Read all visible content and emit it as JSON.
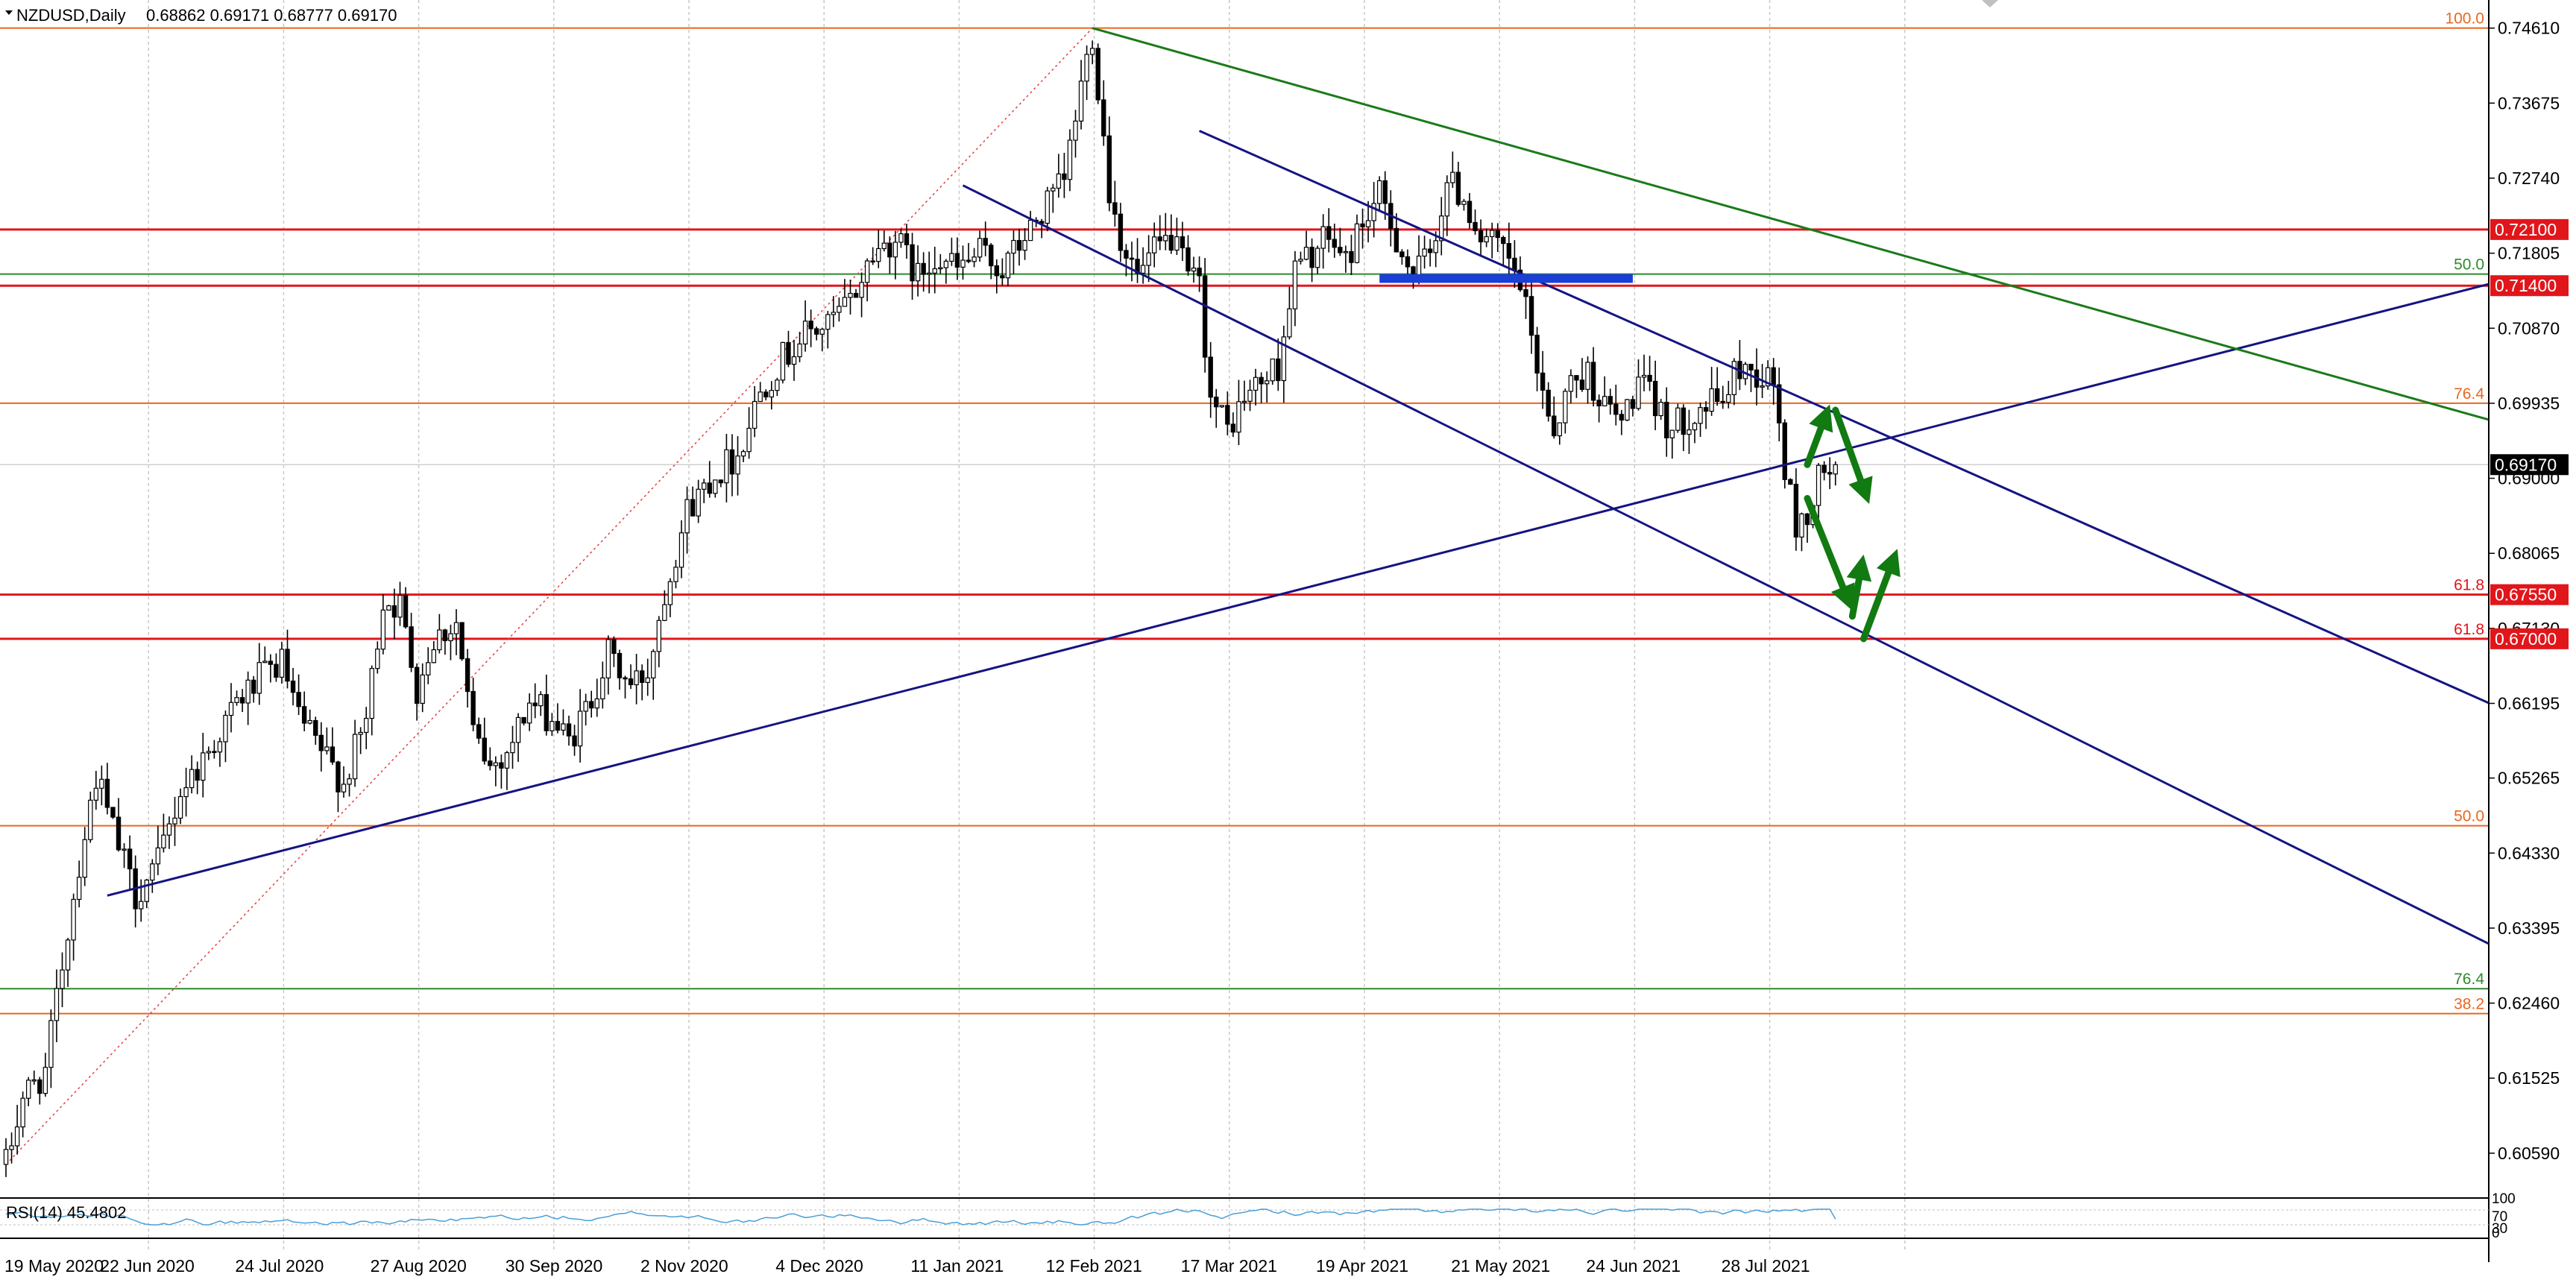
{
  "header": {
    "symbol_timeframe": "NZDUSD,Daily",
    "ohlc": "0.68862 0.69171 0.68777 0.69170"
  },
  "colors": {
    "background": "#ffffff",
    "grid": "#c8c8c8",
    "fib_orange": "#e8671f",
    "fib_green": "#2e8b2e",
    "level_red": "#e0161b",
    "trend_navy": "#141482",
    "trend_green": "#1b7a1b",
    "zone_blue": "#1a3fd6",
    "arrow_green": "#117a11",
    "candle": "#000000",
    "rsi_line": "#4a9fd8",
    "current_price_bg": "#000000"
  },
  "chart_data": [
    {
      "type": "candlestick",
      "title": "NZDUSD,Daily",
      "current_price": 0.6917,
      "ylim": [
        0.6005,
        0.7496
      ],
      "y_ticks": [
        0.7461,
        0.73675,
        0.7274,
        0.71805,
        0.7087,
        0.69935,
        0.69,
        0.68065,
        0.6713,
        0.66195,
        0.65265,
        0.6433,
        0.63395,
        0.6246,
        0.61525,
        0.6059
      ],
      "y_tick_labels": [
        "0.74610",
        "0.73675",
        "0.72740",
        "0.71805",
        "0.70870",
        "0.69935",
        "0.69000",
        "0.68065",
        "0.67130",
        "0.66195",
        "0.65265",
        "0.64330",
        "0.63395",
        "0.62460",
        "0.61525",
        "0.60590"
      ],
      "x_labels": [
        "19 May 2020",
        "22 Jun 2020",
        "24 Jul 2020",
        "27 Aug 2020",
        "30 Sep 2020",
        "2 Nov 2020",
        "4 Dec 2020",
        "11 Jan 2021",
        "12 Feb 2021",
        "17 Mar 2021",
        "19 Apr 2021",
        "21 May 2021",
        "24 Jun 2021",
        "28 Jul 2021"
      ],
      "x_label_bars": [
        0,
        24,
        48,
        72,
        96,
        120,
        144,
        168,
        192,
        216,
        240,
        264,
        288,
        312
      ],
      "bar_count": 326,
      "anchors": [
        [
          0,
          0.6045
        ],
        [
          3,
          0.613
        ],
        [
          7,
          0.616
        ],
        [
          10,
          0.6295
        ],
        [
          13,
          0.642
        ],
        [
          16,
          0.653
        ],
        [
          20,
          0.644
        ],
        [
          23,
          0.638
        ],
        [
          27,
          0.642
        ],
        [
          31,
          0.651
        ],
        [
          36,
          0.656
        ],
        [
          41,
          0.662
        ],
        [
          45,
          0.665
        ],
        [
          49,
          0.667
        ],
        [
          52,
          0.66
        ],
        [
          56,
          0.656
        ],
        [
          60,
          0.652
        ],
        [
          64,
          0.66
        ],
        [
          67,
          0.675
        ],
        [
          70,
          0.674
        ],
        [
          73,
          0.664
        ],
        [
          76,
          0.67
        ],
        [
          80,
          0.672
        ],
        [
          83,
          0.658
        ],
        [
          86,
          0.654
        ],
        [
          89,
          0.656
        ],
        [
          93,
          0.662
        ],
        [
          97,
          0.66
        ],
        [
          100,
          0.657
        ],
        [
          103,
          0.661
        ],
        [
          107,
          0.668
        ],
        [
          111,
          0.664
        ],
        [
          114,
          0.666
        ],
        [
          117,
          0.676
        ],
        [
          121,
          0.686
        ],
        [
          125,
          0.69
        ],
        [
          130,
          0.693
        ],
        [
          134,
          0.701
        ],
        [
          138,
          0.705
        ],
        [
          142,
          0.708
        ],
        [
          146,
          0.709
        ],
        [
          150,
          0.712
        ],
        [
          154,
          0.718
        ],
        [
          158,
          0.72
        ],
        [
          162,
          0.715
        ],
        [
          165,
          0.718
        ],
        [
          169,
          0.716
        ],
        [
          173,
          0.718
        ],
        [
          177,
          0.716
        ],
        [
          181,
          0.72
        ],
        [
          185,
          0.724
        ],
        [
          188,
          0.727
        ],
        [
          191,
          0.739
        ],
        [
          193,
          0.7455
        ],
        [
          196,
          0.726
        ],
        [
          198,
          0.72
        ],
        [
          201,
          0.715
        ],
        [
          204,
          0.718
        ],
        [
          207,
          0.72
        ],
        [
          210,
          0.715
        ],
        [
          212,
          0.714
        ],
        [
          214,
          0.7
        ],
        [
          217,
          0.696
        ],
        [
          220,
          0.7
        ],
        [
          223,
          0.702
        ],
        [
          226,
          0.704
        ],
        [
          229,
          0.716
        ],
        [
          232,
          0.718
        ],
        [
          235,
          0.72
        ],
        [
          238,
          0.717
        ],
        [
          241,
          0.722
        ],
        [
          244,
          0.725
        ],
        [
          247,
          0.72
        ],
        [
          250,
          0.715
        ],
        [
          253,
          0.718
        ],
        [
          256,
          0.727
        ],
        [
          259,
          0.725
        ],
        [
          262,
          0.72
        ],
        [
          266,
          0.718
        ],
        [
          269,
          0.714
        ],
        [
          272,
          0.704
        ],
        [
          275,
          0.696
        ],
        [
          278,
          0.702
        ],
        [
          281,
          0.703
        ],
        [
          284,
          0.699
        ],
        [
          287,
          0.697
        ],
        [
          290,
          0.702
        ],
        [
          293,
          0.699
        ],
        [
          296,
          0.696
        ],
        [
          299,
          0.698
        ],
        [
          302,
          0.699
        ],
        [
          305,
          0.7
        ],
        [
          308,
          0.704
        ],
        [
          311,
          0.703
        ],
        [
          314,
          0.702
        ],
        [
          316,
          0.691
        ],
        [
          318,
          0.684
        ],
        [
          320,
          0.685
        ],
        [
          322,
          0.69
        ],
        [
          325,
          0.6917
        ]
      ],
      "horizontal_levels": [
        {
          "price": 0.7461,
          "color": "fib_orange",
          "label": "100.0"
        },
        {
          "price": 0.721,
          "color": "level_red",
          "tag": "0.72100"
        },
        {
          "price": 0.71545,
          "color": "fib_green",
          "label": "50.0"
        },
        {
          "price": 0.714,
          "color": "level_red",
          "tag": "0.71400"
        },
        {
          "price": 0.69935,
          "color": "fib_orange",
          "label": "76.4"
        },
        {
          "price": 0.6755,
          "color": "level_red",
          "tag": "0.67550",
          "label": "61.8"
        },
        {
          "price": 0.67,
          "color": "level_red",
          "tag": "0.67000",
          "label": "61.8"
        },
        {
          "price": 0.6467,
          "color": "fib_orange",
          "label": "50.0"
        },
        {
          "price": 0.6264,
          "color": "fib_green",
          "label": "76.4"
        },
        {
          "price": 0.6233,
          "color": "fib_orange",
          "label": "38.2"
        }
      ],
      "trend_lines": [
        {
          "color": "trend_navy",
          "from": [
            18,
            0.638
          ],
          "to": [
            "right",
            0.7142
          ]
        },
        {
          "color": "trend_navy",
          "from": [
            212,
            0.7333
          ],
          "to": [
            "right",
            0.662
          ]
        },
        {
          "color": "trend_navy",
          "from": [
            170,
            0.7265
          ],
          "to": [
            "right",
            0.632
          ]
        },
        {
          "color": "trend_green",
          "from": [
            193,
            0.7461
          ],
          "to": [
            "right",
            0.6973
          ]
        }
      ],
      "fib_dotted_line": {
        "from": [
          0,
          0.6045
        ],
        "to": [
          193,
          0.7461
        ]
      },
      "zone": {
        "from_bar": 244,
        "to_bar": 289,
        "price_top": 0.71545,
        "price_bottom": 0.71435
      },
      "arrows": [
        [
          [
            320,
            0.6917
          ],
          [
            324,
            0.6992
          ]
        ],
        [
          [
            325,
            0.6985
          ],
          [
            331,
            0.6868
          ]
        ],
        [
          [
            320,
            0.6875
          ],
          [
            328,
            0.6735
          ]
        ],
        [
          [
            328,
            0.6728
          ],
          [
            330,
            0.6805
          ]
        ],
        [
          [
            330,
            0.67
          ],
          [
            336,
            0.6812
          ]
        ]
      ],
      "sub_panel": {
        "title": "RSI(14) 45.4802",
        "ticks": [
          "100",
          "70",
          "30",
          "0"
        ],
        "value": 45.4802
      }
    }
  ]
}
